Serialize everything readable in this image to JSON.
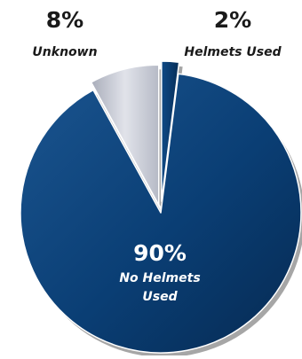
{
  "chart_data": {
    "type": "pie",
    "categories": [
      "Helmets Used",
      "Unknown",
      "No Helmets Used"
    ],
    "values": [
      2,
      8,
      90
    ],
    "labels": [
      {
        "pct": "2%",
        "name": [
          "Helmets Used"
        ]
      },
      {
        "pct": "8%",
        "name": [
          "Unknown"
        ]
      },
      {
        "pct": "90%",
        "name": [
          "No Helmets",
          "Used"
        ]
      }
    ],
    "colors": [
      "#0b3c73",
      "#c9ccd6",
      "#083d73"
    ],
    "exploded": true
  }
}
